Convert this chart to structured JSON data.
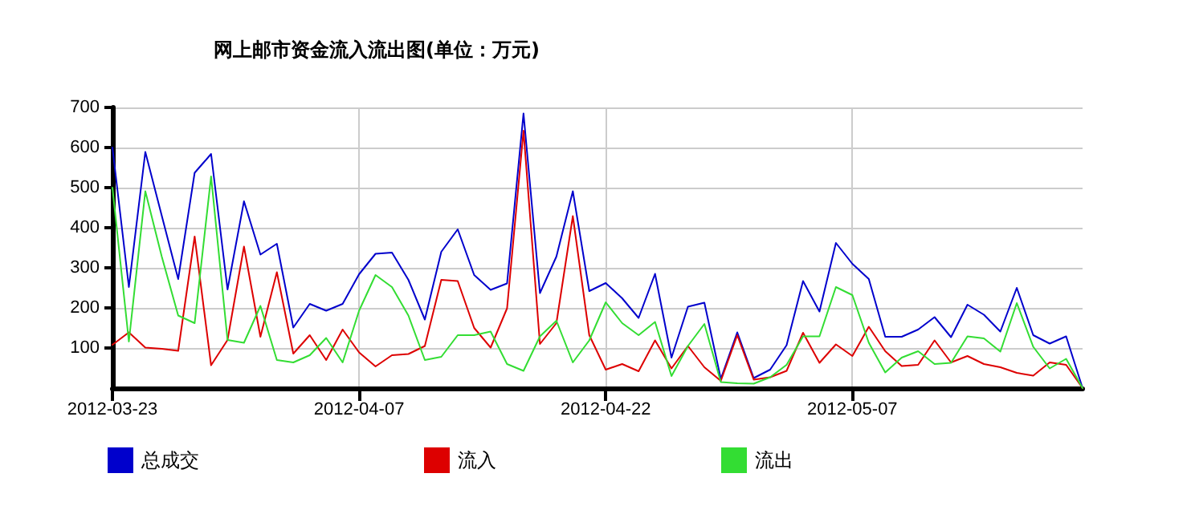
{
  "chart_data": {
    "type": "line",
    "title": "网上邮市资金流入流出图(单位：万元)",
    "x": [
      "2012-03-23",
      "2012-03-24",
      "2012-03-25",
      "2012-03-26",
      "2012-03-27",
      "2012-03-28",
      "2012-03-29",
      "2012-03-30",
      "2012-03-31",
      "2012-04-01",
      "2012-04-02",
      "2012-04-03",
      "2012-04-04",
      "2012-04-05",
      "2012-04-06",
      "2012-04-07",
      "2012-04-08",
      "2012-04-09",
      "2012-04-10",
      "2012-04-11",
      "2012-04-12",
      "2012-04-13",
      "2012-04-14",
      "2012-04-15",
      "2012-04-16",
      "2012-04-17",
      "2012-04-18",
      "2012-04-19",
      "2012-04-20",
      "2012-04-21",
      "2012-04-22",
      "2012-04-23",
      "2012-04-24",
      "2012-04-25",
      "2012-04-26",
      "2012-04-27",
      "2012-04-28",
      "2012-04-29",
      "2012-04-30",
      "2012-05-01",
      "2012-05-02",
      "2012-05-03",
      "2012-05-04",
      "2012-05-05",
      "2012-05-06",
      "2012-05-07",
      "2012-05-08",
      "2012-05-09",
      "2012-05-10",
      "2012-05-11",
      "2012-05-12",
      "2012-05-13",
      "2012-05-14",
      "2012-05-15",
      "2012-05-16",
      "2012-05-17",
      "2012-05-18",
      "2012-05-19",
      "2012-05-20",
      "2012-05-21"
    ],
    "series": [
      {
        "name": "总成交",
        "color": "#0000cc",
        "values": [
          600,
          252,
          589,
          430,
          272,
          537,
          584,
          246,
          466,
          333,
          360,
          151,
          210,
          193,
          210,
          284,
          335,
          338,
          270,
          171,
          340,
          396,
          282,
          245,
          261,
          685,
          237,
          328,
          491,
          242,
          262,
          224,
          175,
          285,
          76,
          203,
          213,
          23,
          139,
          25,
          46,
          107,
          267,
          191,
          362,
          310,
          272,
          128,
          128,
          146,
          177,
          127,
          208,
          183,
          141,
          250,
          132,
          111,
          129,
          0
        ]
      },
      {
        "name": "流入",
        "color": "#dd0000",
        "values": [
          108,
          139,
          101,
          98,
          93,
          378,
          57,
          120,
          353,
          128,
          289,
          86,
          132,
          70,
          146,
          89,
          54,
          82,
          85,
          105,
          270,
          267,
          150,
          101,
          199,
          642,
          110,
          162,
          429,
          132,
          46,
          60,
          42,
          119,
          49,
          105,
          52,
          18,
          132,
          21,
          27,
          43,
          138,
          63,
          109,
          80,
          153,
          92,
          55,
          58,
          119,
          64,
          80,
          60,
          52,
          38,
          31,
          64,
          58,
          0
        ]
      },
      {
        "name": "流出",
        "color": "#33dd33",
        "values": [
          500,
          116,
          491,
          328,
          181,
          162,
          528,
          120,
          113,
          205,
          70,
          64,
          82,
          125,
          64,
          193,
          282,
          252,
          181,
          70,
          78,
          132,
          132,
          141,
          60,
          43,
          129,
          168,
          64,
          119,
          214,
          162,
          132,
          165,
          30,
          105,
          160,
          15,
          12,
          11,
          27,
          58,
          129,
          129,
          252,
          232,
          113,
          39,
          76,
          92,
          60,
          63,
          129,
          124,
          91,
          212,
          103,
          49,
          73,
          0
        ]
      }
    ],
    "xlim": [
      "2012-03-23",
      "2012-05-21"
    ],
    "xticks": [
      "2012-03-23",
      "2012-04-07",
      "2012-04-22",
      "2012-05-07"
    ],
    "ylim": [
      0,
      700
    ],
    "yticks": [
      100,
      200,
      300,
      400,
      500,
      600,
      700
    ],
    "grid": true,
    "legend": "bottom left",
    "marker": "none",
    "line_style": "solid"
  }
}
